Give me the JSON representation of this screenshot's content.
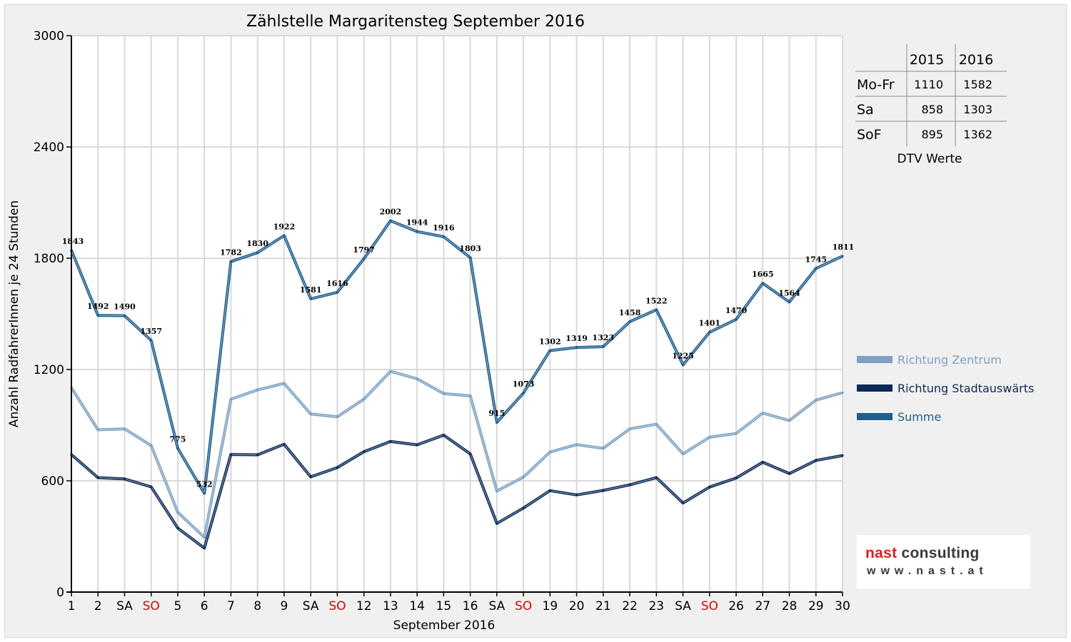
{
  "chart_data": {
    "type": "line",
    "title": "Zählstelle Margaritensteg September 2016",
    "xlabel": "September 2016",
    "ylabel": "Anzahl RadfahrerInnen je 24 Stunden",
    "ylim": [
      0,
      3000
    ],
    "yticks": [
      0,
      600,
      1200,
      1800,
      2400,
      3000
    ],
    "grid": true,
    "legend_position": "right",
    "categories": [
      "1",
      "2",
      "SA",
      "SO",
      "5",
      "6",
      "7",
      "8",
      "9",
      "SA",
      "SO",
      "12",
      "13",
      "14",
      "15",
      "16",
      "SA",
      "SO",
      "19",
      "20",
      "21",
      "22",
      "23",
      "SA",
      "SO",
      "26",
      "27",
      "28",
      "29",
      "30"
    ],
    "weekend_color": "#e00000",
    "series": [
      {
        "name": "Richtung Zentrum",
        "color": "#7ea1c2",
        "values": [
          1102,
          875,
          880,
          790,
          430,
          295,
          1040,
          1090,
          1125,
          960,
          945,
          1040,
          1190,
          1150,
          1070,
          1058,
          545,
          620,
          755,
          795,
          775,
          880,
          905,
          745,
          835,
          855,
          965,
          925,
          1035,
          1075
        ]
      },
      {
        "name": "Richtung Stadtauswärts",
        "color": "#0c2a55",
        "values": [
          741,
          617,
          610,
          567,
          345,
          237,
          742,
          740,
          797,
          621,
          671,
          757,
          812,
          794,
          846,
          745,
          370,
          453,
          547,
          524,
          548,
          578,
          617,
          480,
          566,
          615,
          700,
          639,
          710,
          736
        ]
      },
      {
        "name": "Summe",
        "color": "#1f5d8c",
        "values": [
          1843,
          1492,
          1490,
          1357,
          775,
          532,
          1782,
          1830,
          1922,
          1581,
          1616,
          1797,
          2002,
          1944,
          1916,
          1803,
          915,
          1073,
          1302,
          1319,
          1323,
          1458,
          1522,
          1225,
          1401,
          1470,
          1665,
          1564,
          1745,
          1811
        ],
        "data_labels": [
          "1843",
          "1492",
          "1490",
          "1357",
          "775",
          "532",
          "1782",
          "1830",
          "1922",
          "1581",
          "1616",
          "1797",
          "2002",
          "1944",
          "1916",
          "1803",
          "915",
          "1073",
          "1302",
          "1319",
          "1323",
          "1458",
          "1522",
          "1225",
          "1401",
          "1470",
          "1665",
          "1564",
          "1745",
          "1811"
        ]
      }
    ],
    "dtv_table": {
      "caption": "DTV Werte",
      "columns": [
        "",
        "2015",
        "2016"
      ],
      "rows": [
        {
          "label": "Mo-Fr",
          "v2015": "1110",
          "v2016": "1582"
        },
        {
          "label": "Sa",
          "v2015": "858",
          "v2016": "1303"
        },
        {
          "label": "SoF",
          "v2015": "895",
          "v2016": "1362"
        }
      ]
    }
  },
  "logo": {
    "line1_a": "nast",
    "line1_b": " consulting",
    "line2": "www.nast.at"
  }
}
